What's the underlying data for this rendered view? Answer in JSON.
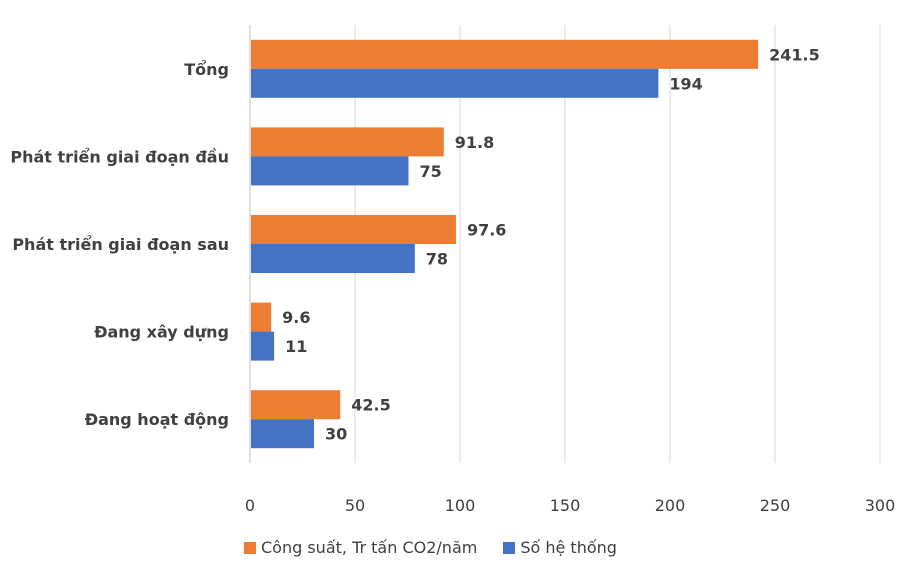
{
  "chart_data": {
    "type": "bar",
    "orientation": "horizontal",
    "title": "",
    "xlabel": "",
    "ylabel": "",
    "categories": [
      "Tổng",
      "Phát triển giai đoạn đầu",
      "Phát triển giai đoạn sau",
      "Đang xây dựng",
      "Đang hoạt động"
    ],
    "series": [
      {
        "name": "Công suất, Tr tấn CO2/năm",
        "color": "#ED7D31",
        "values": [
          241.5,
          91.8,
          97.6,
          9.6,
          42.5
        ],
        "labels": [
          "241.5",
          "91.8",
          "97.6",
          "9.6",
          "42.5"
        ]
      },
      {
        "name": "Số hệ thống",
        "color": "#4472C4",
        "values": [
          194,
          75,
          78,
          11,
          30
        ],
        "labels": [
          "194",
          "75",
          "78",
          "11",
          "30"
        ]
      }
    ],
    "xlim": [
      0,
      300
    ],
    "xticks": [
      0,
      50,
      100,
      150,
      200,
      250,
      300
    ],
    "xtick_labels": [
      "0",
      "50",
      "100",
      "150",
      "200",
      "250",
      "300"
    ],
    "grid": true,
    "legend_position": "bottom"
  }
}
